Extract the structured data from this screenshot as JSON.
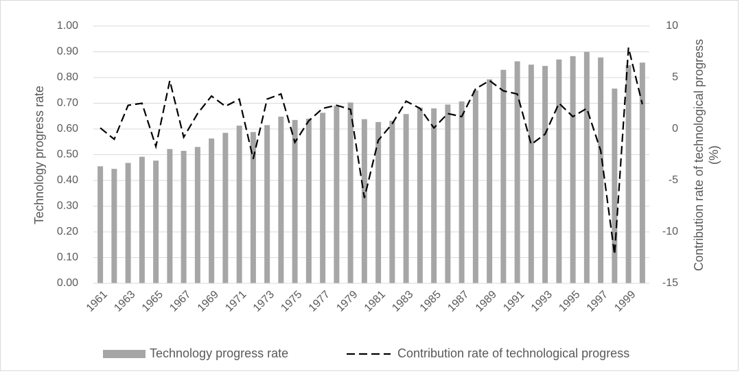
{
  "chart_data": {
    "type": "bar-line",
    "categories": [
      "1961",
      null,
      "1963",
      null,
      "1965",
      null,
      "1967",
      null,
      "1969",
      null,
      "1971",
      null,
      "1973",
      null,
      "1975",
      null,
      "1977",
      null,
      "1979",
      null,
      "1981",
      null,
      "1983",
      null,
      "1985",
      null,
      "1987",
      null,
      "1989",
      null,
      "1991",
      null,
      "1993",
      null,
      "1995",
      null,
      "1997",
      null,
      "1999",
      null
    ],
    "y_label": "Technology progress rate",
    "y2_label": "Contribution rate of technological progress (%)",
    "ylim": [
      0,
      1
    ],
    "yticks": [
      {
        "value": 0,
        "label": "0.00"
      },
      {
        "value": 0.1,
        "label": "0.10"
      },
      {
        "value": 0.2,
        "label": "0.20"
      },
      {
        "value": 0.3,
        "label": "0.30"
      },
      {
        "value": 0.4,
        "label": "0.40"
      },
      {
        "value": 0.5,
        "label": "0.50"
      },
      {
        "value": 0.6,
        "label": "0.60"
      },
      {
        "value": 0.7,
        "label": "0.70"
      },
      {
        "value": 0.8,
        "label": "0.80"
      },
      {
        "value": 0.9,
        "label": "0.90"
      },
      {
        "value": 1,
        "label": "1.00"
      }
    ],
    "y2lim": [
      -15,
      10
    ],
    "y2ticks": [
      -15,
      -10,
      -5,
      0,
      5,
      10
    ],
    "series": [
      {
        "name": "Technology progress rate",
        "type": "bar",
        "color": "#a6a6a6",
        "values": [
          0.455,
          0.445,
          0.468,
          0.492,
          0.477,
          0.522,
          0.515,
          0.53,
          0.563,
          0.585,
          0.613,
          0.588,
          0.615,
          0.648,
          0.635,
          0.64,
          0.663,
          0.69,
          0.703,
          0.638,
          0.627,
          0.632,
          0.658,
          0.683,
          0.68,
          0.695,
          0.707,
          0.75,
          0.793,
          0.83,
          0.863,
          0.85,
          0.845,
          0.87,
          0.883,
          0.9,
          0.878,
          0.757,
          0.848,
          0.858
        ]
      },
      {
        "name": "Contribution rate of technological progress",
        "type": "line",
        "axis": "y2",
        "color": "#000000",
        "values": [
          0.1,
          -1.0,
          2.3,
          2.5,
          -1.7,
          4.7,
          -0.8,
          1.5,
          3.2,
          2.2,
          2.9,
          -2.9,
          2.9,
          3.4,
          -1.3,
          0.8,
          2.0,
          2.3,
          1.9,
          -6.7,
          -1.1,
          0.5,
          2.7,
          2.0,
          0.1,
          1.5,
          1.2,
          3.9,
          4.7,
          3.7,
          3.4,
          -1.5,
          -0.5,
          2.5,
          1.2,
          2.0,
          -2.1,
          -12.2,
          7.9,
          2.4
        ]
      }
    ]
  }
}
